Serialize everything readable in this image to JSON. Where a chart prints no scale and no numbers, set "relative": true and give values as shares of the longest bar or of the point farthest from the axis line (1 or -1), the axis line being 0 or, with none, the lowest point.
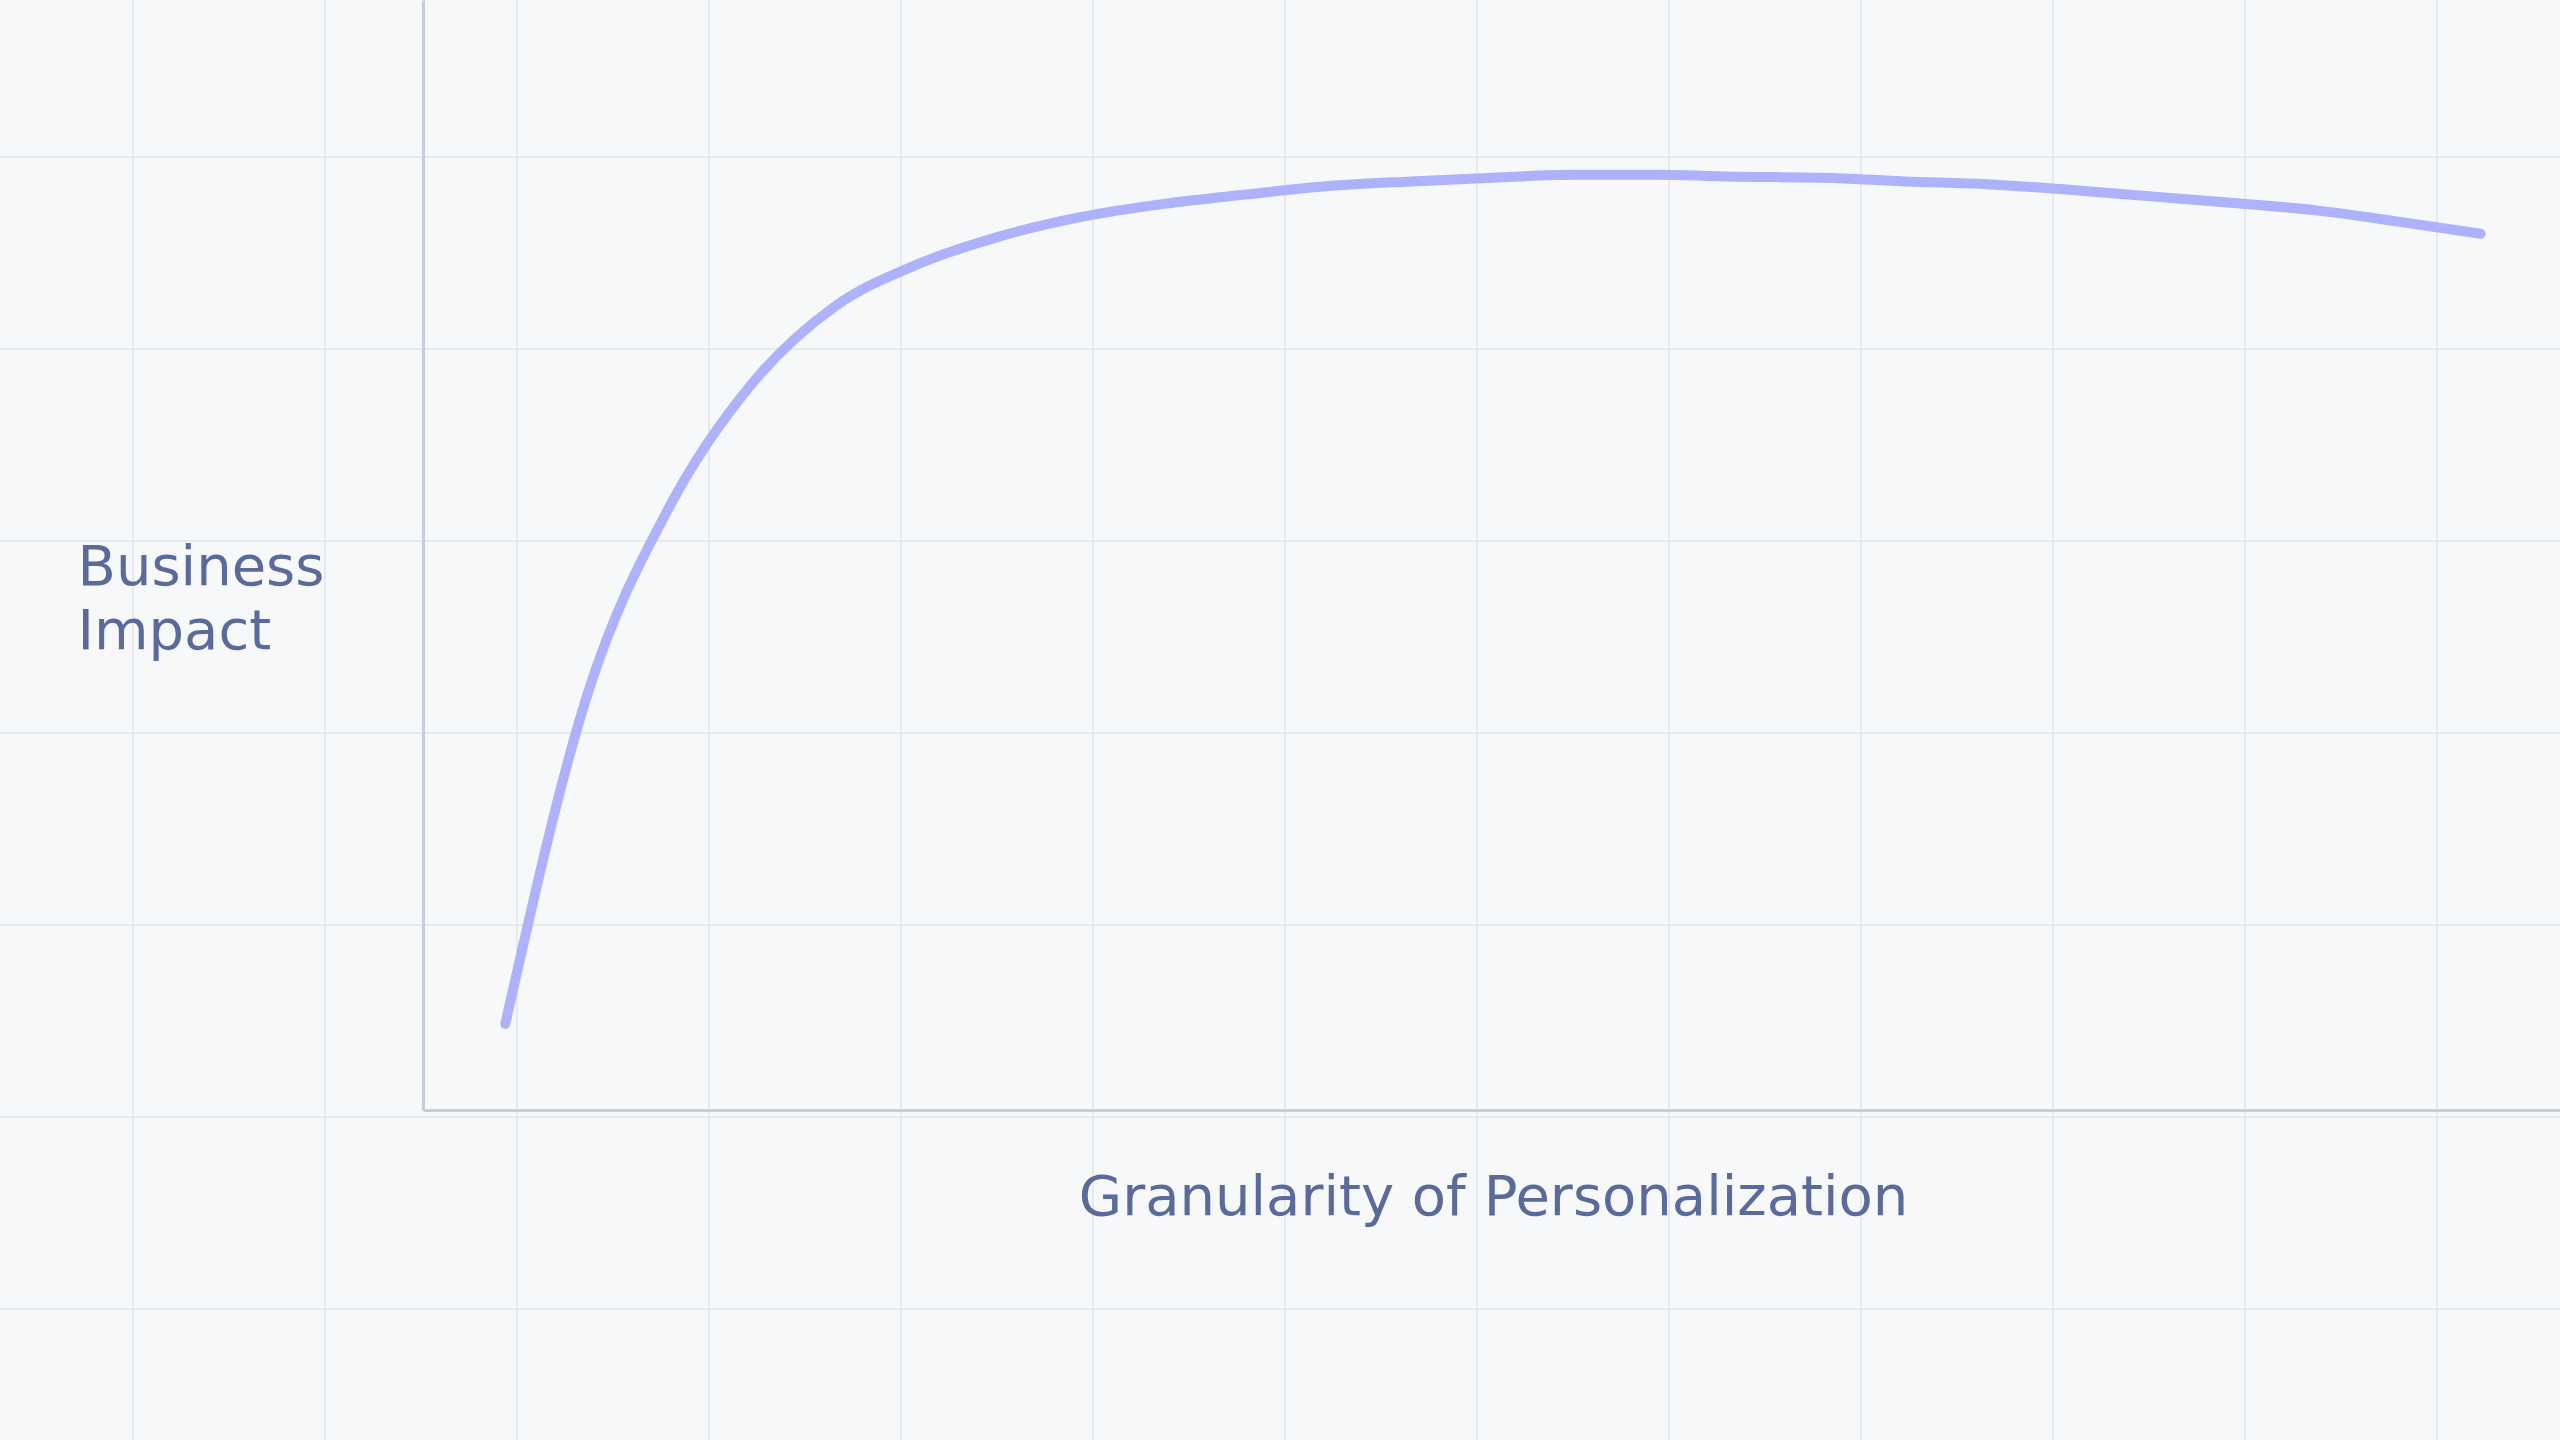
{
  "chart_data": {
    "type": "line",
    "relative": true,
    "xlabel": "Granularity of Personalization",
    "ylabel": "Business Impact",
    "categories": [
      null,
      null,
      null,
      null,
      null,
      null,
      null,
      null,
      null,
      null,
      null,
      null,
      null,
      null,
      null,
      null,
      null,
      null,
      null,
      null,
      null,
      null,
      null,
      null,
      null
    ],
    "series": [
      {
        "color": "#aeb2fc",
        "values": [
          0.092,
          0.445,
          0.646,
          0.777,
          0.859,
          0.904,
          0.934,
          0.955,
          0.969,
          0.979,
          0.988,
          0.993,
          0.997,
          1.0,
          1.0,
          0.998,
          0.997,
          0.993,
          0.99,
          0.984,
          0.977,
          0.97,
          0.962,
          0.95,
          0.937
        ]
      }
    ],
    "marker": "none",
    "line_style": "solid"
  }
}
